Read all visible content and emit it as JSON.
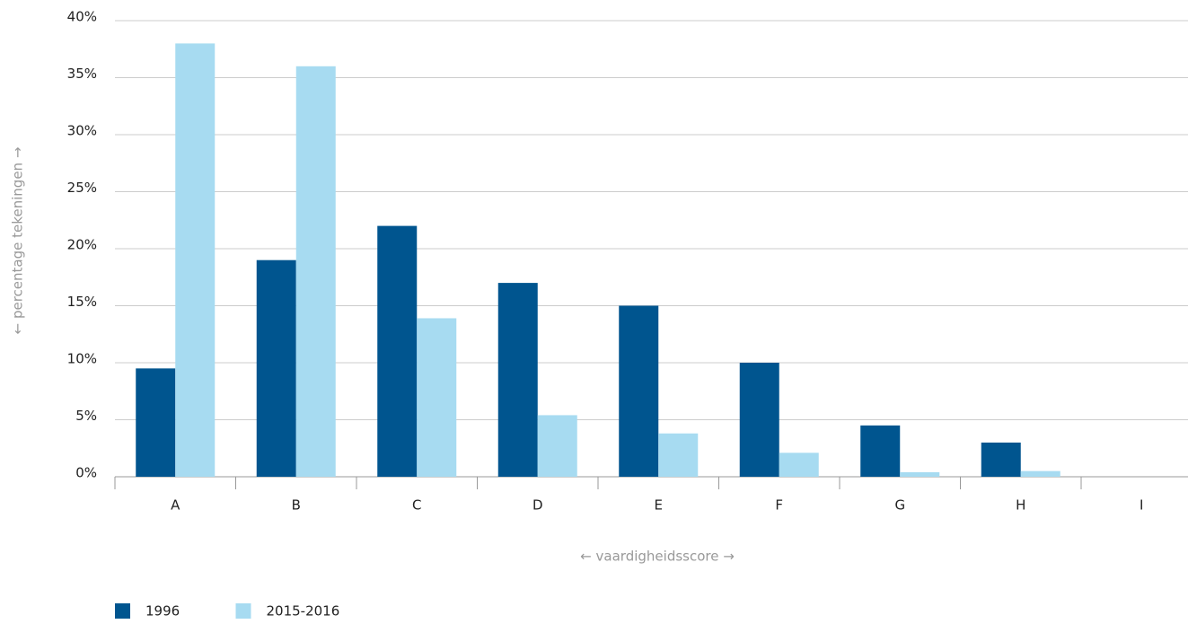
{
  "chart_data": {
    "type": "bar",
    "y_label": "← percentage tekeningen →",
    "x_label": "← vaardigheidsscore →",
    "categories": [
      "A",
      "B",
      "C",
      "D",
      "E",
      "F",
      "G",
      "H",
      "I"
    ],
    "series": [
      {
        "name": "1996",
        "color": "#00558f",
        "values": [
          9.5,
          19,
          22,
          17,
          15,
          10,
          4.5,
          3,
          0
        ]
      },
      {
        "name": "2015-2016",
        "color": "#a7dbf1",
        "values": [
          38,
          36,
          13.9,
          5.4,
          3.8,
          2.1,
          0.4,
          0.5,
          0
        ]
      }
    ],
    "ylim": [
      0,
      40
    ],
    "yticks": [
      {
        "value": 0,
        "label": "0%"
      },
      {
        "value": 5,
        "label": "5%"
      },
      {
        "value": 10,
        "label": "10%"
      },
      {
        "value": 15,
        "label": "15%"
      },
      {
        "value": 20,
        "label": "20%"
      },
      {
        "value": 25,
        "label": "25%"
      },
      {
        "value": 30,
        "label": "30%"
      },
      {
        "value": 35,
        "label": "35%"
      },
      {
        "value": 40,
        "label": "40%"
      }
    ],
    "grid": true
  }
}
